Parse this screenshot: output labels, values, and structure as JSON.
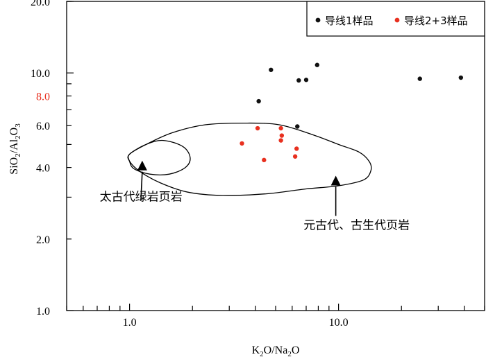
{
  "chart_data": {
    "type": "scatter",
    "xscale": "log",
    "yscale": "log",
    "xlim": [
      0.5,
      50
    ],
    "ylim": [
      1.0,
      20.0
    ],
    "xlabel": "K2O/Na2O",
    "ylabel": "SiO2/Al2O3",
    "xtick_labels": [
      {
        "value": 1,
        "label": "1.0"
      },
      {
        "value": 10,
        "label": "10.0"
      }
    ],
    "ytick_labels": [
      {
        "value": 1,
        "label": "1.0",
        "color": "#000000"
      },
      {
        "value": 2,
        "label": "2.0",
        "color": "#000000"
      },
      {
        "value": 4,
        "label": "4.0",
        "color": "#000000"
      },
      {
        "value": 6,
        "label": "6.0",
        "color": "#000000"
      },
      {
        "value": 8,
        "label": "8.0",
        "color": "#e8301f"
      },
      {
        "value": 10,
        "label": "10.0",
        "color": "#000000"
      },
      {
        "value": 20,
        "label": "20.0",
        "color": "#000000"
      }
    ],
    "legend_position": "top-right",
    "series": [
      {
        "name": "导线1样品",
        "color": "#111111",
        "points": [
          {
            "x": 4.75,
            "y": 10.3
          },
          {
            "x": 7.9,
            "y": 10.8
          },
          {
            "x": 6.45,
            "y": 9.3
          },
          {
            "x": 7.0,
            "y": 9.35
          },
          {
            "x": 4.15,
            "y": 7.6
          },
          {
            "x": 6.35,
            "y": 5.95
          },
          {
            "x": 24.5,
            "y": 9.45
          },
          {
            "x": 38.5,
            "y": 9.55
          }
        ]
      },
      {
        "name": "导线2+3样品",
        "color": "#e8301f",
        "points": [
          {
            "x": 4.1,
            "y": 5.85
          },
          {
            "x": 5.3,
            "y": 5.85
          },
          {
            "x": 5.35,
            "y": 5.45
          },
          {
            "x": 5.3,
            "y": 5.2
          },
          {
            "x": 3.45,
            "y": 5.05
          },
          {
            "x": 6.3,
            "y": 4.8
          },
          {
            "x": 4.4,
            "y": 4.3
          },
          {
            "x": 6.2,
            "y": 4.45
          }
        ]
      }
    ],
    "regions": [
      {
        "name": "outer-field",
        "outline": [
          {
            "x": 1.0,
            "y": 4.55
          },
          {
            "x": 1.2,
            "y": 5.0
          },
          {
            "x": 1.6,
            "y": 5.6
          },
          {
            "x": 2.3,
            "y": 6.05
          },
          {
            "x": 3.5,
            "y": 6.15
          },
          {
            "x": 5.2,
            "y": 6.05
          },
          {
            "x": 7.5,
            "y": 5.5
          },
          {
            "x": 10.0,
            "y": 5.0
          },
          {
            "x": 12.5,
            "y": 4.65
          },
          {
            "x": 14.0,
            "y": 4.25
          },
          {
            "x": 14.3,
            "y": 3.9
          },
          {
            "x": 13.2,
            "y": 3.55
          },
          {
            "x": 10.0,
            "y": 3.35
          },
          {
            "x": 7.0,
            "y": 3.25
          },
          {
            "x": 4.5,
            "y": 3.1
          },
          {
            "x": 2.8,
            "y": 3.05
          },
          {
            "x": 1.9,
            "y": 3.15
          },
          {
            "x": 1.4,
            "y": 3.45
          },
          {
            "x": 1.12,
            "y": 3.85
          },
          {
            "x": 1.0,
            "y": 4.25
          }
        ]
      },
      {
        "name": "inner-field",
        "outline": [
          {
            "x": 1.0,
            "y": 4.55
          },
          {
            "x": 1.2,
            "y": 5.0
          },
          {
            "x": 1.45,
            "y": 5.2
          },
          {
            "x": 1.8,
            "y": 4.9
          },
          {
            "x": 1.95,
            "y": 4.4
          },
          {
            "x": 1.85,
            "y": 4.0
          },
          {
            "x": 1.55,
            "y": 3.75
          },
          {
            "x": 1.25,
            "y": 3.75
          },
          {
            "x": 1.05,
            "y": 3.95
          },
          {
            "x": 1.0,
            "y": 4.25
          }
        ]
      }
    ],
    "annotations": [
      {
        "text": "太古代绿岩页岩",
        "arrow_tip": {
          "x": 1.15,
          "y": 4.05
        },
        "text_anchor": {
          "x": 0.72,
          "y": 2.9
        }
      },
      {
        "text": "元古代、古生代页岩",
        "arrow_tip": {
          "x": 9.7,
          "y": 3.5
        },
        "text_anchor": {
          "x": 6.8,
          "y": 2.2
        }
      }
    ]
  }
}
